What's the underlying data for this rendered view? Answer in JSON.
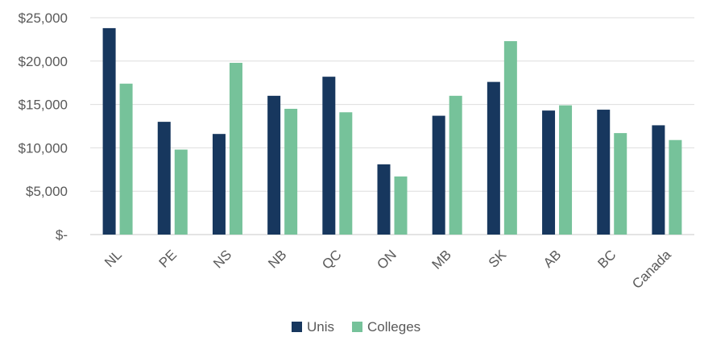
{
  "chart_data": {
    "type": "bar",
    "title": "",
    "xlabel": "",
    "ylabel": "",
    "categories": [
      "NL",
      "PE",
      "NS",
      "NB",
      "QC",
      "ON",
      "MB",
      "SK",
      "AB",
      "BC",
      "Canada"
    ],
    "series": [
      {
        "name": "Unis",
        "color": "#17375e",
        "values": [
          23800,
          13000,
          11600,
          16000,
          18200,
          8100,
          13700,
          17600,
          14300,
          14400,
          12600
        ]
      },
      {
        "name": "Colleges",
        "color": "#76c29a",
        "values": [
          17400,
          9800,
          19800,
          14500,
          14100,
          6700,
          16000,
          22300,
          14900,
          11700,
          10900
        ]
      }
    ],
    "ylim": [
      0,
      25000
    ],
    "y_ticks": [
      0,
      5000,
      10000,
      15000,
      20000,
      25000
    ],
    "y_tick_labels": [
      "$-",
      "$5,000",
      "$10,000",
      "$15,000",
      "$20,000",
      "$25,000"
    ],
    "grid": true,
    "legend_position": "bottom"
  }
}
